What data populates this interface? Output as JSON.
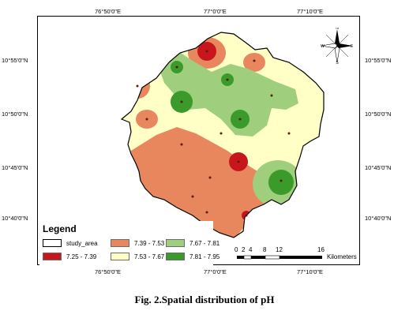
{
  "map": {
    "lon_ticks": [
      "76°50'0\"E",
      "77°0'0\"E",
      "77°10'0\"E"
    ],
    "lat_ticks": [
      "10°55'0\"N",
      "10°50'0\"N",
      "10°45'0\"N",
      "10°40'0\"N"
    ],
    "north_arrow": {
      "labels": {
        "n": "N",
        "s": "S",
        "e": "E",
        "w": "W"
      }
    }
  },
  "legend": {
    "title": "Legend",
    "items": [
      {
        "label": "study_area",
        "color": "#ffffff"
      },
      {
        "label": "7.39 - 7.53",
        "color": "#e8875e"
      },
      {
        "label": "7.67 - 7.81",
        "color": "#9fcf7c"
      },
      {
        "label": "7.25 - 7.39",
        "color": "#c8171c"
      },
      {
        "label": "7.53 - 7.67",
        "color": "#ffffc6"
      },
      {
        "label": "7.81 - 7.95",
        "color": "#3a9a2a"
      }
    ]
  },
  "scalebar": {
    "ticks": [
      "0",
      "2",
      "4",
      "8",
      "12",
      "16"
    ],
    "unit": "Kilometers"
  },
  "caption": "Fig. 2.Spatial distribution  of pH"
}
